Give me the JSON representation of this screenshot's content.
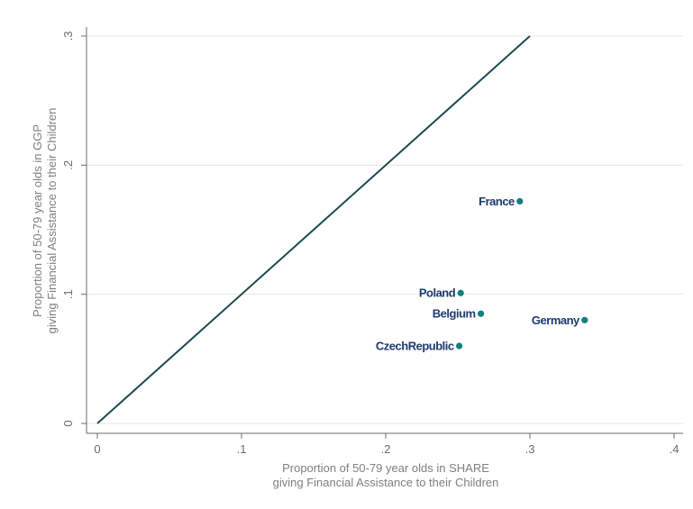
{
  "chart_data": {
    "type": "scatter",
    "xlabel": [
      "Proportion of 50-79 year olds in SHARE",
      "giving Financial Assistance to their Children"
    ],
    "ylabel": [
      "Proportion of 50-79 year olds in GGP",
      "giving Financial Assistance to their Children"
    ],
    "xlim": [
      0,
      0.4
    ],
    "ylim": [
      0,
      0.3
    ],
    "xticks": [
      {
        "value": 0,
        "label": "0"
      },
      {
        "value": 0.1,
        "label": ".1"
      },
      {
        "value": 0.2,
        "label": ".2"
      },
      {
        "value": 0.3,
        "label": ".3"
      },
      {
        "value": 0.4,
        "label": ".4"
      }
    ],
    "yticks": [
      {
        "value": 0,
        "label": "0"
      },
      {
        "value": 0.1,
        "label": ".1"
      },
      {
        "value": 0.2,
        "label": ".2"
      },
      {
        "value": 0.3,
        "label": ".3"
      }
    ],
    "grid": "horizontal",
    "reference_line": {
      "x": [
        0,
        0.3
      ],
      "y": [
        0,
        0.3
      ]
    },
    "points": [
      {
        "label": "France",
        "x": 0.293,
        "y": 0.172
      },
      {
        "label": "Poland",
        "x": 0.252,
        "y": 0.101
      },
      {
        "label": "Belgium",
        "x": 0.266,
        "y": 0.085
      },
      {
        "label": "Germany",
        "x": 0.338,
        "y": 0.08
      },
      {
        "label": "CzechRepublic",
        "x": 0.251,
        "y": 0.06
      }
    ],
    "colors": {
      "points": "#0f7f7f",
      "line": "#1b4a52",
      "labels": "#1e3a6e",
      "grid": "#e6e6e6",
      "axis": "#6b6b6b"
    }
  }
}
